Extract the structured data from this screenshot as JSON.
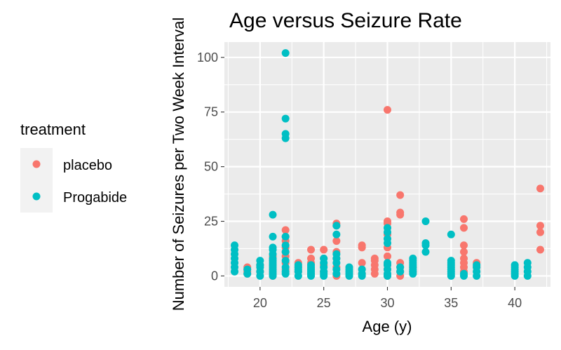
{
  "chart_data": {
    "type": "scatter",
    "title": "Age versus Seizure Rate",
    "xlabel": "Age (y)",
    "ylabel": "Number of Seizures per Two Week Interval",
    "xlim": [
      17.2,
      42.8
    ],
    "ylim": [
      -5,
      107
    ],
    "x_ticks": [
      20,
      25,
      30,
      35,
      40
    ],
    "y_ticks": [
      0,
      25,
      50,
      75,
      100
    ],
    "x_tick_labels": [
      "20",
      "25",
      "30",
      "35",
      "40"
    ],
    "y_tick_labels": [
      "0",
      "25",
      "50",
      "75",
      "100"
    ],
    "grid": true,
    "legend": {
      "title": "treatment",
      "position": "left"
    },
    "series": [
      {
        "name": "placebo",
        "color": "#F8766D",
        "points": [
          [
            19,
            1
          ],
          [
            19,
            2
          ],
          [
            19,
            3
          ],
          [
            19,
            4
          ],
          [
            20,
            2
          ],
          [
            20,
            5
          ],
          [
            21,
            0
          ],
          [
            21,
            1
          ],
          [
            21,
            3
          ],
          [
            21,
            5
          ],
          [
            21,
            7
          ],
          [
            21,
            9
          ],
          [
            22,
            3
          ],
          [
            22,
            6
          ],
          [
            22,
            9
          ],
          [
            22,
            11
          ],
          [
            22,
            13
          ],
          [
            22,
            16
          ],
          [
            22,
            18
          ],
          [
            22,
            21
          ],
          [
            23,
            2
          ],
          [
            23,
            4
          ],
          [
            23,
            6
          ],
          [
            24,
            1
          ],
          [
            24,
            3
          ],
          [
            24,
            6
          ],
          [
            24,
            8
          ],
          [
            24,
            12
          ],
          [
            25,
            2
          ],
          [
            25,
            5
          ],
          [
            25,
            8
          ],
          [
            25,
            12
          ],
          [
            26,
            0
          ],
          [
            26,
            4
          ],
          [
            26,
            8
          ],
          [
            26,
            11
          ],
          [
            26,
            16
          ],
          [
            26,
            23
          ],
          [
            26,
            24
          ],
          [
            28,
            1
          ],
          [
            28,
            3
          ],
          [
            28,
            6
          ],
          [
            28,
            13
          ],
          [
            28,
            14
          ],
          [
            29,
            1
          ],
          [
            29,
            3
          ],
          [
            29,
            5
          ],
          [
            29,
            7
          ],
          [
            29,
            8
          ],
          [
            30,
            0
          ],
          [
            30,
            3
          ],
          [
            30,
            5
          ],
          [
            30,
            9
          ],
          [
            30,
            13
          ],
          [
            30,
            19
          ],
          [
            30,
            24
          ],
          [
            30,
            25
          ],
          [
            30,
            76
          ],
          [
            31,
            0
          ],
          [
            31,
            2
          ],
          [
            31,
            4
          ],
          [
            31,
            6
          ],
          [
            31,
            28
          ],
          [
            31,
            29
          ],
          [
            31,
            37
          ],
          [
            32,
            2
          ],
          [
            32,
            4
          ],
          [
            36,
            2
          ],
          [
            36,
            4
          ],
          [
            36,
            6
          ],
          [
            36,
            8
          ],
          [
            36,
            11
          ],
          [
            36,
            14
          ],
          [
            36,
            22
          ],
          [
            36,
            26
          ],
          [
            37,
            4
          ],
          [
            37,
            6
          ],
          [
            42,
            12
          ],
          [
            42,
            20
          ],
          [
            42,
            23
          ],
          [
            42,
            40
          ]
        ]
      },
      {
        "name": "Progabide",
        "color": "#00BFC4",
        "points": [
          [
            18,
            2
          ],
          [
            18,
            4
          ],
          [
            18,
            6
          ],
          [
            18,
            8
          ],
          [
            18,
            10
          ],
          [
            18,
            12
          ],
          [
            18,
            14
          ],
          [
            19,
            1
          ],
          [
            19,
            3
          ],
          [
            20,
            0
          ],
          [
            20,
            2
          ],
          [
            20,
            4
          ],
          [
            20,
            5
          ],
          [
            20,
            7
          ],
          [
            21,
            0
          ],
          [
            21,
            1
          ],
          [
            21,
            2
          ],
          [
            21,
            3
          ],
          [
            21,
            4
          ],
          [
            21,
            5
          ],
          [
            21,
            6
          ],
          [
            21,
            7
          ],
          [
            21,
            8
          ],
          [
            21,
            10
          ],
          [
            21,
            12
          ],
          [
            21,
            13
          ],
          [
            21,
            18
          ],
          [
            21,
            28
          ],
          [
            22,
            1
          ],
          [
            22,
            2
          ],
          [
            22,
            4
          ],
          [
            22,
            7
          ],
          [
            22,
            11
          ],
          [
            22,
            14
          ],
          [
            22,
            18
          ],
          [
            22,
            63
          ],
          [
            22,
            65
          ],
          [
            22,
            72
          ],
          [
            22,
            102
          ],
          [
            23,
            0
          ],
          [
            23,
            2
          ],
          [
            23,
            3
          ],
          [
            23,
            4
          ],
          [
            23,
            5
          ],
          [
            24,
            0
          ],
          [
            24,
            1
          ],
          [
            24,
            2
          ],
          [
            24,
            3
          ],
          [
            24,
            4
          ],
          [
            24,
            5
          ],
          [
            25,
            0
          ],
          [
            25,
            1
          ],
          [
            25,
            2
          ],
          [
            25,
            4
          ],
          [
            25,
            6
          ],
          [
            25,
            8
          ],
          [
            26,
            1
          ],
          [
            26,
            3
          ],
          [
            26,
            6
          ],
          [
            26,
            8
          ],
          [
            26,
            10
          ],
          [
            26,
            19
          ],
          [
            26,
            23
          ],
          [
            27,
            0
          ],
          [
            27,
            1
          ],
          [
            27,
            2
          ],
          [
            27,
            3
          ],
          [
            27,
            4
          ],
          [
            28,
            0
          ],
          [
            28,
            1
          ],
          [
            28,
            3
          ],
          [
            30,
            0
          ],
          [
            30,
            1
          ],
          [
            30,
            3
          ],
          [
            30,
            5
          ],
          [
            30,
            6
          ],
          [
            30,
            15
          ],
          [
            30,
            17
          ],
          [
            30,
            20
          ],
          [
            30,
            22
          ],
          [
            31,
            2
          ],
          [
            31,
            4
          ],
          [
            32,
            1
          ],
          [
            32,
            2
          ],
          [
            32,
            3
          ],
          [
            32,
            4
          ],
          [
            32,
            5
          ],
          [
            32,
            6
          ],
          [
            32,
            7
          ],
          [
            32,
            8
          ],
          [
            33,
            11
          ],
          [
            33,
            14
          ],
          [
            33,
            15
          ],
          [
            33,
            25
          ],
          [
            35,
            0
          ],
          [
            35,
            1
          ],
          [
            35,
            2
          ],
          [
            35,
            3
          ],
          [
            35,
            4
          ],
          [
            35,
            5
          ],
          [
            35,
            6
          ],
          [
            35,
            7
          ],
          [
            35,
            19
          ],
          [
            36,
            0
          ],
          [
            36,
            1
          ],
          [
            37,
            0
          ],
          [
            37,
            2
          ],
          [
            37,
            4
          ],
          [
            37,
            5
          ],
          [
            40,
            0
          ],
          [
            40,
            1
          ],
          [
            40,
            2
          ],
          [
            40,
            3
          ],
          [
            40,
            4
          ],
          [
            40,
            5
          ],
          [
            41,
            0
          ],
          [
            41,
            2
          ],
          [
            41,
            4
          ],
          [
            41,
            6
          ]
        ]
      }
    ]
  }
}
